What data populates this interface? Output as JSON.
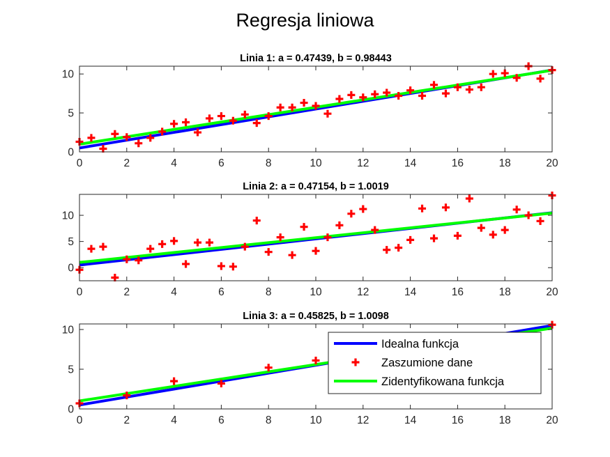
{
  "figure": {
    "suptitle": "Regresja liniowa"
  },
  "colors": {
    "ideal": "#0000FF",
    "noisy": "#FF0000",
    "identified": "#00FF00",
    "axes": "#262626"
  },
  "legend": {
    "location": "bottom-right of third panel",
    "items": [
      {
        "label": "Idealna funkcja",
        "marker": "line",
        "color": "#0000FF"
      },
      {
        "label": "Zaszumione dane",
        "marker": "plus",
        "color": "#FF0000"
      },
      {
        "label": "Zidentyfikowana funkcja",
        "marker": "line",
        "color": "#00FF00"
      }
    ]
  },
  "chart_data": [
    {
      "type": "scatter",
      "title": "Linia 1: a = 0.47439, b = 0.98443",
      "xlim": [
        0,
        20
      ],
      "ylim": [
        0,
        11
      ],
      "xticks": [
        0,
        2,
        4,
        6,
        8,
        10,
        12,
        14,
        16,
        18,
        20
      ],
      "yticks": [
        0,
        5,
        10
      ],
      "ideal_line": {
        "slope": 0.5,
        "intercept": 0.5
      },
      "fit_line": {
        "slope": 0.47439,
        "intercept": 0.98443
      },
      "points": {
        "x": [
          0,
          0.5,
          1,
          1.5,
          2,
          2.5,
          3,
          3.5,
          4,
          4.5,
          5,
          5.5,
          6,
          6.5,
          7,
          7.5,
          8,
          8.5,
          9,
          9.5,
          10,
          10.5,
          11,
          11.5,
          12,
          12.5,
          13,
          13.5,
          14,
          14.5,
          15,
          15.5,
          16,
          16.5,
          17,
          17.5,
          18,
          18.5,
          19,
          19.5,
          20
        ],
        "y": [
          1.3,
          1.8,
          0.4,
          2.3,
          1.9,
          1.1,
          1.8,
          2.6,
          3.6,
          3.8,
          2.5,
          4.3,
          4.6,
          4.0,
          4.8,
          3.7,
          4.6,
          5.7,
          5.7,
          6.3,
          5.9,
          4.9,
          6.8,
          7.3,
          7.0,
          7.4,
          7.6,
          7.2,
          7.9,
          7.2,
          8.6,
          7.5,
          8.3,
          8.0,
          8.3,
          10.0,
          10.1,
          9.5,
          11.0,
          9.4,
          10.5
        ]
      }
    },
    {
      "type": "scatter",
      "title": "Linia 2: a = 0.47154, b = 1.0019",
      "xlim": [
        0,
        20
      ],
      "ylim": [
        -2.5,
        14
      ],
      "xticks": [
        0,
        2,
        4,
        6,
        8,
        10,
        12,
        14,
        16,
        18,
        20
      ],
      "yticks": [
        0,
        5,
        10
      ],
      "ideal_line": {
        "slope": 0.5,
        "intercept": 0.5
      },
      "fit_line": {
        "slope": 0.47154,
        "intercept": 1.0019
      },
      "points": {
        "x": [
          0,
          0.5,
          1,
          1.5,
          2,
          2.5,
          3,
          3.5,
          4,
          4.5,
          5,
          5.5,
          6,
          6.5,
          7,
          7.5,
          8,
          8.5,
          9,
          9.5,
          10,
          10.5,
          11,
          11.5,
          12,
          12.5,
          13,
          13.5,
          14,
          14.5,
          15,
          15.5,
          16,
          16.5,
          17,
          17.5,
          18,
          18.5,
          19,
          19.5,
          20
        ],
        "y": [
          -0.4,
          3.6,
          4.0,
          -1.9,
          1.6,
          1.4,
          3.6,
          4.5,
          5.1,
          0.7,
          4.8,
          4.8,
          0.3,
          0.2,
          4.0,
          9.0,
          3.0,
          5.8,
          2.4,
          7.8,
          3.2,
          5.8,
          8.1,
          10.3,
          11.2,
          7.2,
          3.4,
          3.8,
          5.3,
          11.3,
          5.6,
          11.5,
          6.1,
          13.2,
          7.6,
          6.3,
          7.2,
          11.1,
          10.0,
          8.9,
          13.8
        ]
      }
    },
    {
      "type": "scatter",
      "title": "Linia 3: a = 0.45825, b = 1.0098",
      "xlim": [
        0,
        20
      ],
      "ylim": [
        0,
        10.7
      ],
      "xticks": [
        0,
        2,
        4,
        6,
        8,
        10,
        12,
        14,
        16,
        18,
        20
      ],
      "yticks": [
        0,
        5,
        10
      ],
      "ideal_line": {
        "slope": 0.5,
        "intercept": 0.5
      },
      "fit_line": {
        "slope": 0.45825,
        "intercept": 1.0098
      },
      "points": {
        "x": [
          0,
          2,
          4,
          6,
          8,
          10,
          20
        ],
        "y": [
          0.7,
          1.7,
          3.5,
          3.2,
          5.2,
          6.1,
          10.6
        ]
      }
    }
  ]
}
